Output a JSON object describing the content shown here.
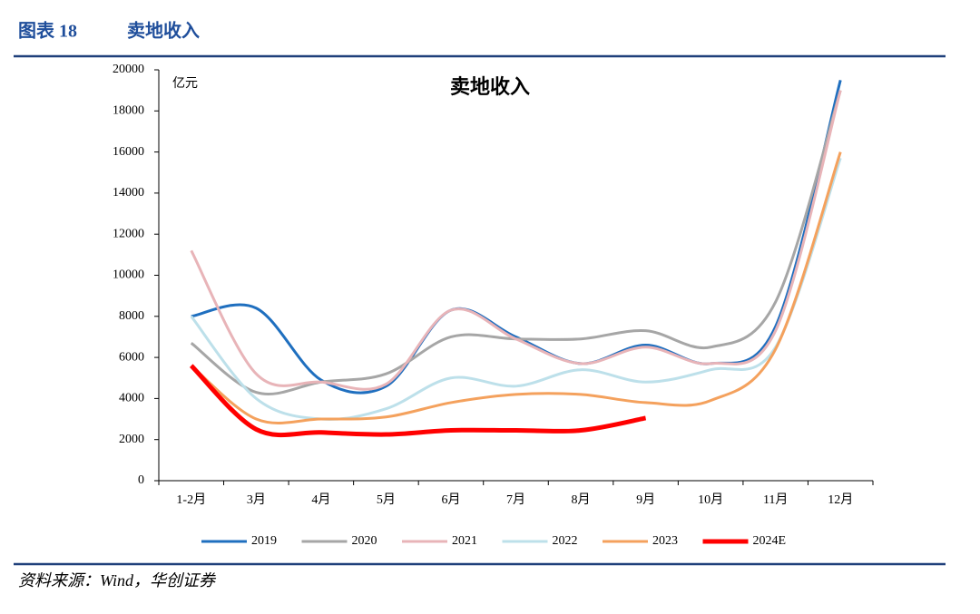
{
  "header": {
    "label": "图表 18",
    "title": "卖地收入"
  },
  "source": "资料来源：Wind，华创证券",
  "chart_data": {
    "type": "line",
    "title": "卖地收入",
    "y_label": "亿元",
    "categories": [
      "1-2月",
      "3月",
      "4月",
      "5月",
      "6月",
      "7月",
      "8月",
      "9月",
      "10月",
      "11月",
      "12月"
    ],
    "series": [
      {
        "name": "2019",
        "color": "#1f6fbf",
        "values": [
          8000,
          8400,
          4900,
          4600,
          8300,
          7000,
          5700,
          6600,
          5700,
          7500,
          19500
        ]
      },
      {
        "name": "2020",
        "color": "#a6a6a6",
        "values": [
          6700,
          4300,
          4800,
          5200,
          7000,
          6900,
          6900,
          7300,
          6500,
          8700,
          19000
        ]
      },
      {
        "name": "2021",
        "color": "#e8b4b8",
        "values": [
          11200,
          5200,
          4800,
          4700,
          8300,
          6900,
          5700,
          6500,
          5700,
          7300,
          19000
        ]
      },
      {
        "name": "2022",
        "color": "#bde0ea",
        "values": [
          8000,
          4000,
          3000,
          3500,
          5000,
          4600,
          5400,
          4800,
          5400,
          6500,
          15700
        ]
      },
      {
        "name": "2023",
        "color": "#f4a15d",
        "values": [
          5600,
          3000,
          3000,
          3100,
          3800,
          4200,
          4200,
          3800,
          3900,
          6400,
          16000
        ]
      },
      {
        "name": "2024E",
        "color": "#ff0000",
        "values": [
          5600,
          2500,
          2350,
          2250,
          2450,
          2450,
          2450,
          3050,
          null,
          null,
          null
        ]
      }
    ],
    "ylim": [
      0,
      20000
    ],
    "yticks": [
      0,
      2000,
      4000,
      6000,
      8000,
      10000,
      12000,
      14000,
      16000,
      18000,
      20000
    ]
  }
}
